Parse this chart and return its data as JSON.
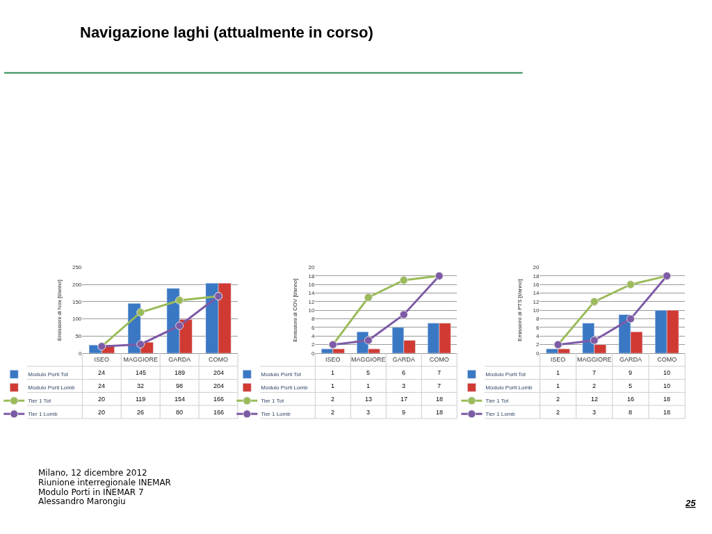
{
  "chart_data": [
    {
      "type": "bar",
      "title": "Navigazione laghi (attualmente in corso)",
      "ylabel": "Emissioni di Nox [t/anno]",
      "categories": [
        "ISEO",
        "MAGGIORE",
        "GARDA",
        "COMO"
      ],
      "series": [
        {
          "name": "Modulo Porti Tot",
          "color": "#3a78c4",
          "values": [
            24,
            145,
            189,
            204
          ]
        },
        {
          "name": "Modulo Porti Lomb",
          "color": "#d03a33",
          "values": [
            24,
            32,
            98,
            204
          ]
        },
        {
          "name": "Tier 1 Tot",
          "color": "#9bbb59",
          "type": "line",
          "values": [
            20,
            119,
            154,
            166
          ]
        },
        {
          "name": "Tier 1 Lomb",
          "color": "#7d5aa6",
          "type": "line",
          "values": [
            20,
            26,
            80,
            166
          ]
        }
      ],
      "ylim": [
        0,
        250
      ],
      "yticks": [
        0,
        50,
        100,
        150,
        200,
        250
      ],
      "grid": "y",
      "legend": "bottom",
      "marker": "circle",
      "data_labels": true,
      "annotations": [
        "Milano, 12 dicembre 2012",
        "Riunione interregionale INEMAR",
        "Modulo Porti in INEMAR 7",
        "Alessandro Marongiu",
        "25"
      ]
    },
    {
      "type": "bar",
      "ylabel": "Emissioni di COV [t/anno]",
      "categories": [
        "ISEO",
        "MAGGIORE",
        "GARDA",
        "COMO"
      ],
      "series": [
        {
          "name": "Modulo Porti Tot",
          "color": "#3a78c4",
          "values": [
            1,
            5,
            6,
            7
          ]
        },
        {
          "name": "Modulo Porti Lomb",
          "color": "#d03a33",
          "values": [
            1,
            1,
            3,
            7
          ]
        },
        {
          "name": "Tier 1 Tot",
          "color": "#9bbb59",
          "type": "line",
          "values": [
            2,
            13,
            17,
            18
          ]
        },
        {
          "name": "Tier 1 Lomb",
          "color": "#7d5aa6",
          "type": "line",
          "values": [
            2,
            3,
            9,
            18
          ]
        }
      ],
      "ylim": [
        0,
        20
      ],
      "yticks": [
        0,
        2,
        4,
        6,
        8,
        10,
        12,
        14,
        16,
        18,
        20
      ],
      "grid": "y",
      "legend": "bottom",
      "marker": "circle",
      "data_labels": true
    },
    {
      "type": "bar",
      "ylabel": "Emissioni di PTS [t/anno]",
      "categories": [
        "ISEO",
        "MAGGIORE",
        "GARDA",
        "COMO"
      ],
      "series": [
        {
          "name": "Modulo Porti Tot",
          "color": "#3a78c4",
          "values": [
            1,
            7,
            9,
            10
          ]
        },
        {
          "name": "Modulo Porti Lomb",
          "color": "#d03a33",
          "values": [
            1,
            2,
            5,
            10
          ]
        },
        {
          "name": "Tier 1 Tot",
          "color": "#9bbb59",
          "type": "line",
          "values": [
            2,
            12,
            16,
            18
          ]
        },
        {
          "name": "Tier 1 Lomb",
          "color": "#7d5aa6",
          "type": "line",
          "values": [
            2,
            3,
            8,
            18
          ]
        }
      ],
      "ylim": [
        0,
        20
      ],
      "yticks": [
        0,
        2,
        4,
        6,
        8,
        10,
        12,
        14,
        16,
        18,
        20
      ],
      "grid": "y",
      "legend": "bottom",
      "marker": "circle",
      "data_labels": true
    }
  ]
}
